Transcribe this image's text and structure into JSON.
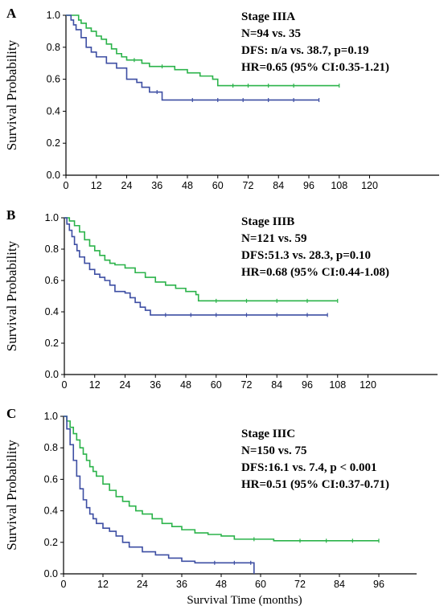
{
  "figure": {
    "xlabel": "Survival Time (months)"
  },
  "colors": {
    "green": "#2bb34a",
    "blue": "#3d4ea3"
  },
  "chart_data": [
    {
      "type": "line",
      "panel": "A",
      "ylabel": "Survival Probability",
      "xlim": [
        0,
        120
      ],
      "ylim": [
        0,
        1
      ],
      "xticks": [
        "0",
        "12",
        "24",
        "36",
        "48",
        "60",
        "72",
        "84",
        "96",
        "108",
        "120"
      ],
      "yticks": [
        "0.0",
        "0.2",
        "0.4",
        "0.6",
        "0.8",
        "1.0"
      ],
      "annotations": [
        "Stage IIIA",
        "N=94 vs. 35",
        "DFS: n/a  vs. 38.7, p=0.19",
        "HR=0.65 (95% CI:0.35-1.21)"
      ],
      "series": [
        {
          "color": "green",
          "x": [
            0,
            5,
            6,
            8,
            10,
            12,
            14,
            16,
            18,
            20,
            22,
            24,
            27,
            30,
            33,
            38,
            43,
            48,
            53,
            58,
            60,
            66,
            72,
            80,
            90,
            108
          ],
          "y": [
            1.0,
            0.97,
            0.95,
            0.92,
            0.9,
            0.87,
            0.85,
            0.82,
            0.79,
            0.76,
            0.74,
            0.72,
            0.72,
            0.7,
            0.68,
            0.68,
            0.66,
            0.64,
            0.62,
            0.6,
            0.56,
            0.56,
            0.56,
            0.56,
            0.56,
            0.56
          ]
        },
        {
          "color": "blue",
          "x": [
            0,
            2,
            3,
            4,
            6,
            8,
            10,
            12,
            16,
            20,
            24,
            28,
            30,
            33,
            36,
            38,
            50,
            60,
            70,
            80,
            90,
            100
          ],
          "y": [
            1.0,
            0.97,
            0.94,
            0.91,
            0.86,
            0.8,
            0.77,
            0.74,
            0.7,
            0.67,
            0.6,
            0.58,
            0.55,
            0.52,
            0.52,
            0.47,
            0.47,
            0.47,
            0.47,
            0.47,
            0.47,
            0.47
          ]
        }
      ]
    },
    {
      "type": "line",
      "panel": "B",
      "ylabel": "Survival Probability",
      "xlim": [
        0,
        120
      ],
      "ylim": [
        0,
        1
      ],
      "xticks": [
        "0",
        "12",
        "24",
        "36",
        "48",
        "60",
        "72",
        "84",
        "96",
        "108",
        "120"
      ],
      "yticks": [
        "0.0",
        "0.2",
        "0.4",
        "0.6",
        "0.8",
        "1.0"
      ],
      "annotations": [
        "Stage IIIB",
        "N=121 vs. 59",
        "DFS:51.3 vs. 28.3, p=0.10",
        "HR=0.68 (95% CI:0.44-1.08)"
      ],
      "series": [
        {
          "color": "green",
          "x": [
            0,
            2,
            4,
            6,
            8,
            10,
            12,
            14,
            16,
            18,
            20,
            24,
            28,
            32,
            36,
            40,
            44,
            48,
            52,
            53,
            60,
            72,
            84,
            96,
            108
          ],
          "y": [
            1.0,
            0.98,
            0.95,
            0.91,
            0.86,
            0.82,
            0.79,
            0.76,
            0.73,
            0.71,
            0.7,
            0.68,
            0.65,
            0.62,
            0.59,
            0.57,
            0.55,
            0.53,
            0.51,
            0.47,
            0.47,
            0.47,
            0.47,
            0.47,
            0.47
          ]
        },
        {
          "color": "blue",
          "x": [
            0,
            1,
            2,
            3,
            4,
            5,
            6,
            8,
            10,
            12,
            14,
            16,
            18,
            20,
            24,
            26,
            28,
            30,
            32,
            34,
            40,
            50,
            60,
            72,
            84,
            96,
            104
          ],
          "y": [
            1.0,
            0.96,
            0.92,
            0.88,
            0.83,
            0.79,
            0.75,
            0.71,
            0.67,
            0.64,
            0.62,
            0.6,
            0.57,
            0.53,
            0.52,
            0.49,
            0.46,
            0.43,
            0.41,
            0.38,
            0.38,
            0.38,
            0.38,
            0.38,
            0.38,
            0.38,
            0.38
          ]
        }
      ]
    },
    {
      "type": "line",
      "panel": "C",
      "ylabel": "Survival Probability",
      "xlim": [
        0,
        96
      ],
      "ylim": [
        0,
        1
      ],
      "xticks": [
        "0",
        "12",
        "24",
        "36",
        "48",
        "60",
        "72",
        "84",
        "96"
      ],
      "yticks": [
        "0.0",
        "0.2",
        "0.4",
        "0.6",
        "0.8",
        "1.0"
      ],
      "annotations": [
        "Stage IIIC",
        "N=150 vs. 75",
        "DFS:16.1 vs. 7.4, p < 0.001",
        "HR=0.51 (95% CI:0.37-0.71)"
      ],
      "series": [
        {
          "color": "green",
          "x": [
            0,
            1,
            2,
            3,
            4,
            5,
            6,
            7,
            8,
            9,
            10,
            12,
            14,
            16,
            18,
            20,
            22,
            24,
            27,
            30,
            33,
            36,
            40,
            44,
            48,
            52,
            58,
            64,
            72,
            80,
            88,
            96
          ],
          "y": [
            1.0,
            0.97,
            0.93,
            0.89,
            0.85,
            0.8,
            0.76,
            0.72,
            0.68,
            0.65,
            0.62,
            0.57,
            0.53,
            0.49,
            0.46,
            0.43,
            0.4,
            0.38,
            0.35,
            0.32,
            0.3,
            0.28,
            0.26,
            0.25,
            0.24,
            0.22,
            0.22,
            0.21,
            0.21,
            0.21,
            0.21,
            0.21
          ]
        },
        {
          "color": "blue",
          "x": [
            0,
            1,
            2,
            3,
            4,
            5,
            6,
            7,
            8,
            9,
            10,
            12,
            14,
            16,
            18,
            20,
            24,
            28,
            32,
            36,
            40,
            46,
            52,
            57,
            58
          ],
          "y": [
            1.0,
            0.92,
            0.82,
            0.72,
            0.62,
            0.54,
            0.47,
            0.42,
            0.38,
            0.35,
            0.32,
            0.29,
            0.27,
            0.24,
            0.2,
            0.17,
            0.14,
            0.12,
            0.1,
            0.08,
            0.07,
            0.07,
            0.07,
            0.07,
            0.0
          ]
        }
      ]
    }
  ]
}
